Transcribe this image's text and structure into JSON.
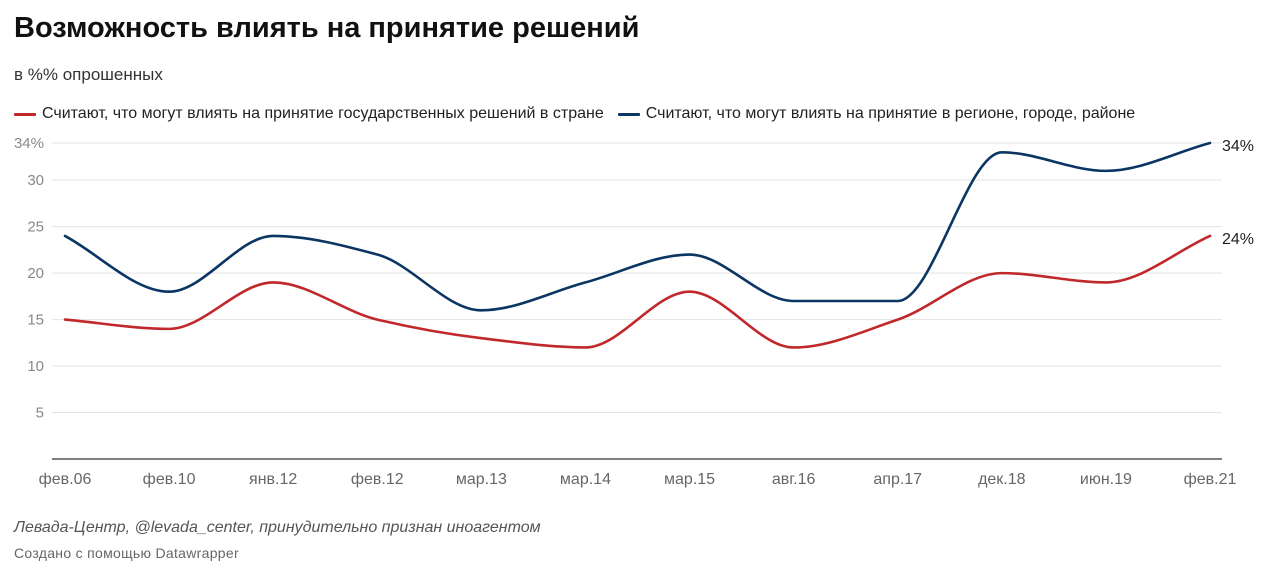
{
  "title": "Возможность влиять на принятие решений",
  "subtitle": "в %% опрошенных",
  "source": "Левада-Центр, @levada_center, принудительно признан иноагентом",
  "credit": "Создано с помощью Datawrapper",
  "colors": {
    "state": "#c0282b",
    "regional": "#0b3563"
  },
  "chart_data": {
    "type": "line",
    "title": "Возможность влиять на принятие решений",
    "subtitle": "в %% опрошенных",
    "xlabel": "",
    "ylabel": "",
    "ylim": [
      0,
      34
    ],
    "y_ticks": [
      5,
      10,
      15,
      20,
      25,
      30,
      34
    ],
    "y_tick_labels": [
      "5",
      "10",
      "15",
      "20",
      "25",
      "30",
      "34%"
    ],
    "grid": true,
    "categories": [
      "фев.06",
      "фев.10",
      "янв.12",
      "фев.12",
      "мар.13",
      "мар.14",
      "мар.15",
      "авг.16",
      "апр.17",
      "дек.18",
      "июн.19",
      "фев.21"
    ],
    "series": [
      {
        "name": "Считают, что могут влиять на принятие государственных решений в стране",
        "color": "#c0282b",
        "values": [
          15,
          14,
          19,
          15,
          13,
          12,
          18,
          12,
          15,
          20,
          19,
          24
        ],
        "end_label": "24%"
      },
      {
        "name": "Считают, что могут влиять на принятие в регионе, городе, районе",
        "color": "#0b3563",
        "values": [
          24,
          18,
          24,
          22,
          16,
          19,
          22,
          17,
          17,
          33,
          31,
          34
        ],
        "end_label": "34%"
      }
    ]
  }
}
